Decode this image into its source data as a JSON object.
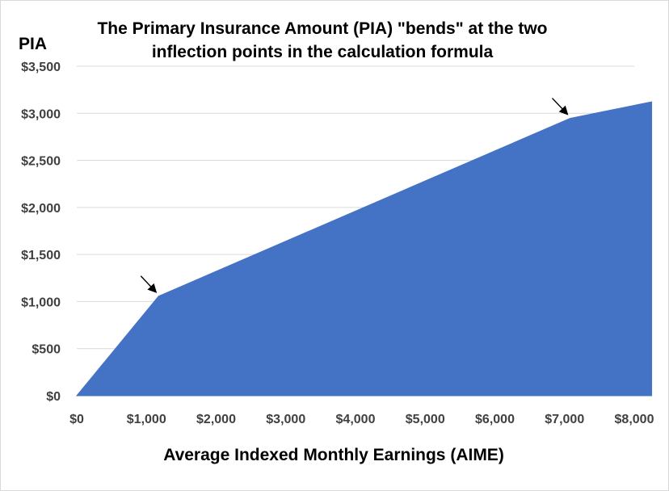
{
  "chart_data": {
    "type": "area",
    "title": "The Primary Insurance Amount (PIA) \"bends\" at the two inflection points in the calculation formula",
    "title_lines": [
      "The Primary Insurance Amount (PIA) \"bends\" at the two",
      "inflection points in the calculation formula"
    ],
    "xlabel": "Average Indexed Monthly Earnings (AIME)",
    "ylabel": "PIA",
    "xlim": [
      0,
      8000
    ],
    "ylim": [
      0,
      3500
    ],
    "x_ticks": [
      0,
      1000,
      2000,
      3000,
      4000,
      5000,
      6000,
      7000,
      8000
    ],
    "x_tick_labels": [
      "$0",
      "$1,000",
      "$2,000",
      "$3,000",
      "$4,000",
      "$5,000",
      "$6,000",
      "$7,000",
      "$8,000"
    ],
    "y_ticks": [
      0,
      500,
      1000,
      1500,
      2000,
      2500,
      3000,
      3500
    ],
    "y_tick_labels": [
      "$0",
      "$500",
      "$1,000",
      "$1,500",
      "$2,000",
      "$2,500",
      "$3,000",
      "$3,500"
    ],
    "grid": true,
    "series": [
      {
        "x": [
          0,
          1174,
          7078,
          8250
        ],
        "y": [
          0,
          1057,
          2946,
          3122
        ]
      }
    ],
    "annotations": [
      {
        "type": "arrow",
        "points_to": {
          "x": 1174,
          "y": 1057
        }
      },
      {
        "type": "arrow",
        "points_to": {
          "x": 7078,
          "y": 2946
        }
      }
    ],
    "colors": {
      "area": "#4472C4",
      "grid": "#d9d9d9",
      "ticks": "#404040"
    }
  }
}
